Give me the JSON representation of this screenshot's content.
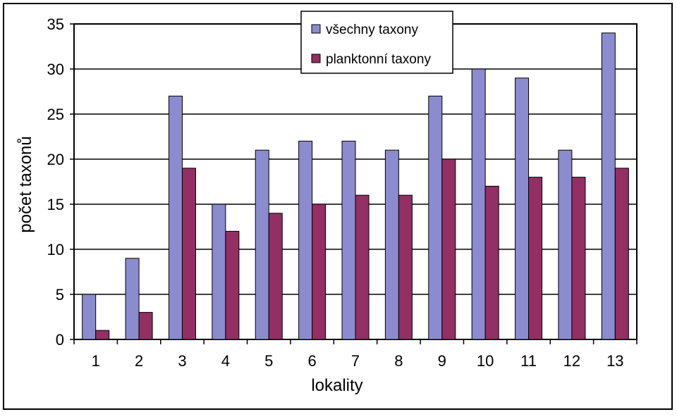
{
  "chart_data": {
    "type": "bar",
    "categories": [
      "1",
      "2",
      "3",
      "4",
      "5",
      "6",
      "7",
      "8",
      "9",
      "10",
      "11",
      "12",
      "13"
    ],
    "series": [
      {
        "name": "všechny taxony",
        "values": [
          5,
          9,
          27,
          15,
          21,
          22,
          22,
          21,
          27,
          30,
          29,
          21,
          34
        ],
        "color": "#8B8BCF"
      },
      {
        "name": "planktonní taxony",
        "values": [
          1,
          3,
          19,
          12,
          14,
          15,
          16,
          16,
          20,
          17,
          18,
          18,
          19
        ],
        "color": "#932F62"
      }
    ],
    "xlabel": "lokality",
    "ylabel": "počet taxonů",
    "ylim": [
      0,
      35
    ],
    "yticks": [
      "0",
      "5",
      "10",
      "15",
      "20",
      "25",
      "30",
      "35"
    ],
    "grid": true,
    "legend_position": "top-center"
  }
}
